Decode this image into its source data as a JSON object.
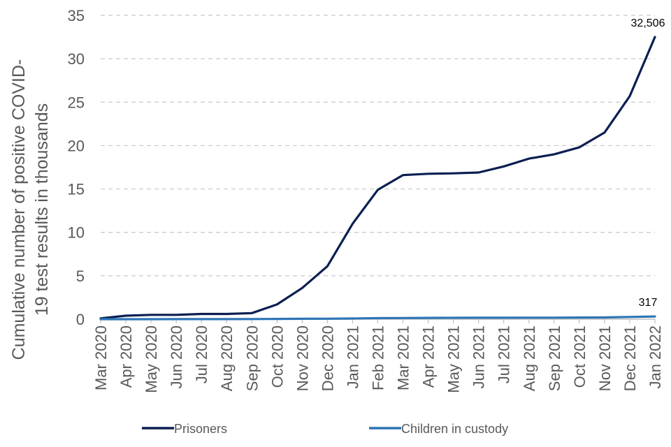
{
  "chart_data": {
    "type": "line",
    "categories": [
      "Mar 2020",
      "Apr 2020",
      "May 2020",
      "Jun 2020",
      "Jul 2020",
      "Aug 2020",
      "Sep 2020",
      "Oct 2020",
      "Nov 2020",
      "Dec 2020",
      "Jan 2021",
      "Feb 2021",
      "Mar 2021",
      "Apr 2021",
      "May 2021",
      "Jun 2021",
      "Jul 2021",
      "Aug 2021",
      "Sep 2021",
      "Oct 2021",
      "Nov 2021",
      "Dec 2021",
      "Jan 2022"
    ],
    "series": [
      {
        "name": "Prisoners",
        "color": "#0b1f51",
        "values": [
          0.1,
          0.4,
          0.5,
          0.5,
          0.6,
          0.6,
          0.7,
          1.7,
          3.6,
          6.1,
          11.0,
          14.9,
          16.6,
          16.75,
          16.8,
          16.9,
          17.6,
          18.5,
          19.0,
          19.8,
          21.5,
          25.7,
          32.506
        ],
        "end_label": "32,506"
      },
      {
        "name": "Children in custody",
        "color": "#2e75b6",
        "values": [
          0.0,
          0.0,
          0.0,
          0.01,
          0.01,
          0.01,
          0.02,
          0.03,
          0.05,
          0.06,
          0.08,
          0.12,
          0.14,
          0.15,
          0.16,
          0.17,
          0.17,
          0.18,
          0.18,
          0.19,
          0.2,
          0.26,
          0.317
        ],
        "end_label": "317"
      }
    ],
    "ylabel": "Cumulative number of positive  COVID-19 test results in thousands",
    "ylabel_lines": [
      "Cumulative number of positive  COVID-",
      "19 test results in thousands"
    ],
    "ylim": [
      0,
      35
    ],
    "yticks": [
      0,
      5,
      10,
      15,
      20,
      25,
      30,
      35
    ],
    "grid": true,
    "legend_position": "bottom"
  }
}
